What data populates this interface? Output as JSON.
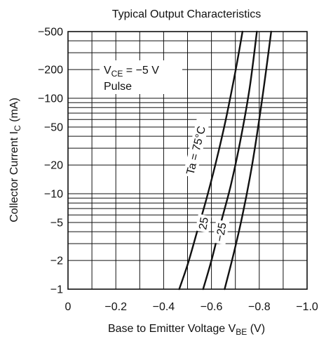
{
  "chart_data": {
    "type": "line",
    "title": "Typical Output Characteristics",
    "xlabel": {
      "main": "Base to Emitter Voltage  V",
      "sub": "BE",
      "unit": "  (V)"
    },
    "ylabel": {
      "main": "Collector Current  I",
      "sub": "C",
      "unit": "  (mA)"
    },
    "xlim": [
      0,
      -1.0
    ],
    "ylim": [
      -1,
      -500
    ],
    "yscale": "log",
    "grid": true,
    "x_ticks": [
      0,
      -0.2,
      -0.4,
      -0.6,
      -0.8,
      -1.0
    ],
    "x_tick_labels": [
      "0",
      "−0.2",
      "−0.4",
      "−0.6",
      "−0.8",
      "−1.0"
    ],
    "y_ticks": [
      -1,
      -2,
      -5,
      -10,
      -20,
      -50,
      -100,
      -200,
      -500
    ],
    "y_tick_labels": [
      "−1",
      "−2",
      "−5",
      "−10",
      "−20",
      "−50",
      "−100",
      "−200",
      "−500"
    ],
    "annotations": {
      "condition_main": "V",
      "condition_sub": "CE",
      "condition_rest": " = −5 V",
      "condition_line2": "Pulse"
    },
    "series": [
      {
        "name": "Ta = 75°C",
        "label": "Ta = 75°C",
        "x": [
          -0.465,
          -0.5,
          -0.54,
          -0.58,
          -0.62,
          -0.66,
          -0.7,
          -0.73
        ],
        "y": [
          -1,
          -1.8,
          -4,
          -9,
          -22,
          -60,
          -190,
          -500
        ]
      },
      {
        "name": "25",
        "label": "25",
        "x": [
          -0.565,
          -0.6,
          -0.64,
          -0.68,
          -0.72,
          -0.76,
          -0.79
        ],
        "y": [
          -1,
          -2,
          -5,
          -12,
          -35,
          -130,
          -500
        ]
      },
      {
        "name": "−25",
        "label": "−25",
        "x": [
          -0.655,
          -0.69,
          -0.73,
          -0.77,
          -0.81,
          -0.85
        ],
        "y": [
          -1,
          -2.2,
          -6,
          -20,
          -90,
          -500
        ]
      }
    ]
  }
}
